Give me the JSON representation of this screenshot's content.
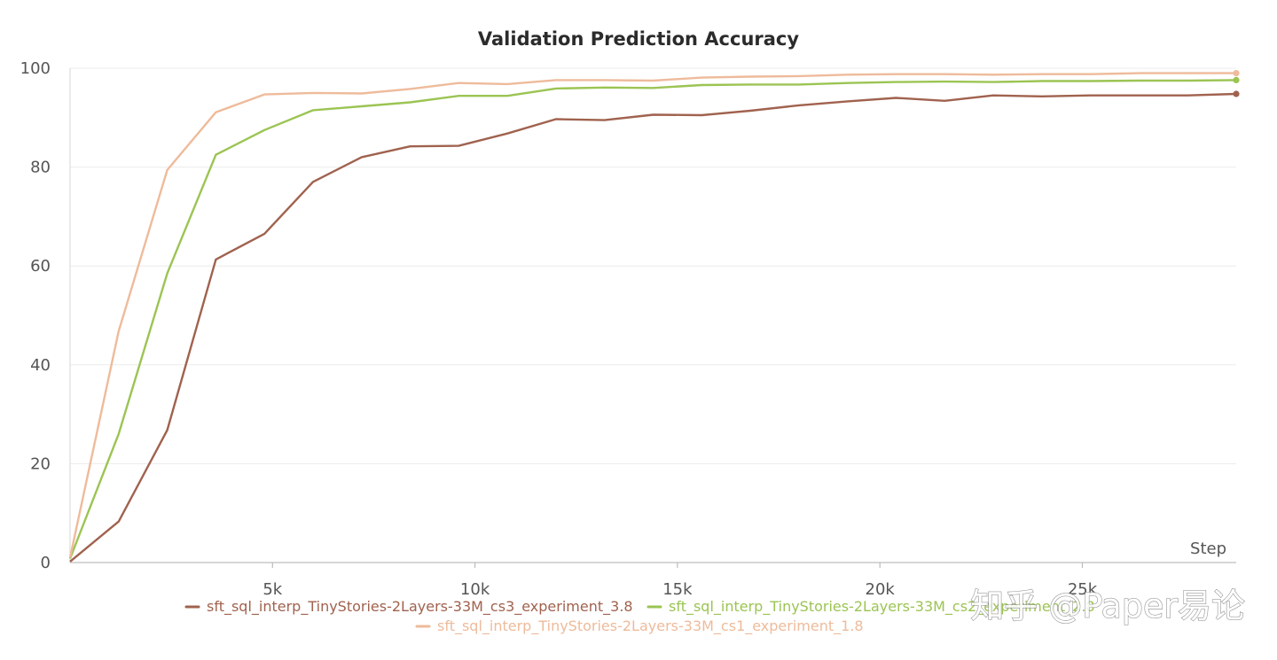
{
  "chart_data": {
    "type": "line",
    "title": "Validation Prediction Accuracy",
    "xlabel": "Step",
    "ylabel": "",
    "xlim": [
      0,
      28800
    ],
    "ylim": [
      0,
      100
    ],
    "xticks": [
      5000,
      10000,
      15000,
      20000,
      25000
    ],
    "xtick_labels": [
      "5k",
      "10k",
      "15k",
      "20k",
      "25k"
    ],
    "yticks": [
      0,
      20,
      40,
      60,
      80,
      100
    ],
    "ytick_labels": [
      "0",
      "20",
      "40",
      "60",
      "80",
      "100"
    ],
    "grid": true,
    "legend": "bottom",
    "series": [
      {
        "name": "sft_sql_interp_TinyStories-2Layers-33M_cs3_experiment_3.8",
        "color": "#a0624e",
        "x": [
          0,
          1200,
          2400,
          3600,
          4800,
          6000,
          7200,
          8400,
          9600,
          10800,
          12000,
          13200,
          14400,
          15600,
          16800,
          18000,
          19200,
          20400,
          21600,
          22800,
          24000,
          25200,
          26400,
          27600,
          28800
        ],
        "values": [
          0.2,
          8.3,
          26.8,
          61.3,
          66.5,
          77.0,
          82.0,
          84.2,
          84.3,
          86.8,
          89.7,
          89.5,
          90.6,
          90.5,
          91.4,
          92.5,
          93.3,
          94.0,
          93.4,
          94.5,
          94.3,
          94.5,
          94.5,
          94.5,
          94.8
        ]
      },
      {
        "name": "sft_sql_interp_TinyStories-2Layers-33M_cs2_experiment_2.8",
        "color": "#9bc453",
        "x": [
          0,
          1200,
          2400,
          3600,
          4800,
          6000,
          7200,
          8400,
          9600,
          10800,
          12000,
          13200,
          14400,
          15600,
          16800,
          18000,
          19200,
          20400,
          21600,
          22800,
          24000,
          25200,
          26400,
          27600,
          28800
        ],
        "values": [
          0.8,
          26.0,
          58.5,
          82.5,
          87.5,
          91.5,
          92.3,
          93.1,
          94.4,
          94.4,
          95.9,
          96.1,
          96.0,
          96.6,
          96.7,
          96.7,
          97.0,
          97.2,
          97.3,
          97.2,
          97.4,
          97.4,
          97.5,
          97.5,
          97.6
        ]
      },
      {
        "name": "sft_sql_interp_TinyStories-2Layers-33M_cs1_experiment_1.8",
        "color": "#eebb9b",
        "x": [
          0,
          1200,
          2400,
          3600,
          4800,
          6000,
          7200,
          8400,
          9600,
          10800,
          12000,
          13200,
          14400,
          15600,
          16800,
          18000,
          19200,
          20400,
          21600,
          22800,
          24000,
          25200,
          26400,
          27600,
          28800
        ],
        "values": [
          1.0,
          46.8,
          79.4,
          91.1,
          94.7,
          95.0,
          94.9,
          95.8,
          97.0,
          96.8,
          97.6,
          97.6,
          97.5,
          98.1,
          98.3,
          98.4,
          98.7,
          98.8,
          98.8,
          98.7,
          98.8,
          98.8,
          99.0,
          99.0,
          99.0
        ]
      }
    ]
  },
  "watermark": "知乎 @Paper易论"
}
